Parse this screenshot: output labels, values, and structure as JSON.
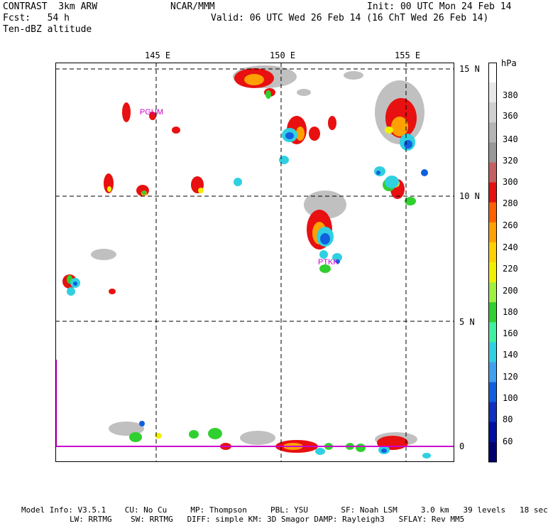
{
  "header": {
    "title": "CONTRAST  3km ARW",
    "center": "NCAR/MMM",
    "init": "Init: 00 UTC Mon 24 Feb 14",
    "fcst": "Fcst:   54 h",
    "valid": "Valid: 06 UTC Wed 26 Feb 14 (16 ChT Wed 26 Feb 14)",
    "field": "Ten-dBZ altitude"
  },
  "map": {
    "lon_labels": [
      "145 E",
      "150 E",
      "155 E"
    ],
    "lat_labels": [
      "15 N",
      "10 N",
      "5 N",
      "0"
    ],
    "station_labels": [
      "PGUM",
      "PTKK"
    ],
    "equator_line_color": "#cc00cc"
  },
  "colorbar": {
    "unit": "hPa",
    "levels": [
      "380",
      "360",
      "340",
      "320",
      "300",
      "280",
      "260",
      "240",
      "220",
      "200",
      "180",
      "160",
      "140",
      "120",
      "100",
      "80",
      "60"
    ],
    "colors": [
      "#ffffff",
      "#e8e8e8",
      "#d0d0d0",
      "#b4b4b4",
      "#989898",
      "#c46060",
      "#e81010",
      "#ff6000",
      "#ffa000",
      "#ffd000",
      "#f0f000",
      "#a0f040",
      "#30d030",
      "#40f0a0",
      "#30d0e0",
      "#40a0f0",
      "#1060e0",
      "#1030c0",
      "#0010a0",
      "#000070"
    ]
  },
  "footer": {
    "line1": "Model Info: V3.5.1    CU: No Cu     MP: Thompson     PBL: YSU       SF: Noah LSM     3.0 km   39 levels   18 sec",
    "line2": "LW: RRTMG    SW: RRTMG   DIFF: simple KM: 3D Smagor DAMP: Rayleigh3   SFLAY: Rev MM5"
  }
}
